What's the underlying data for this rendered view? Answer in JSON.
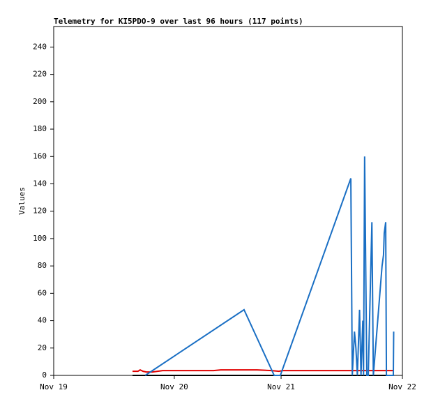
{
  "chart_data": {
    "type": "line",
    "title": "Telemetry for KI5PDO-9 over last 96 hours (117 points)",
    "y_label": "Values",
    "xlim": [
      0,
      96
    ],
    "xticks": [
      {
        "value": 0,
        "label": "Nov 19"
      },
      {
        "value": 33.2,
        "label": "Nov 20"
      },
      {
        "value": 62.6,
        "label": "Nov 21"
      },
      {
        "value": 96,
        "label": "Nov 22"
      }
    ],
    "ylim": [
      0,
      255
    ],
    "yticks": [
      0,
      20,
      40,
      60,
      80,
      100,
      120,
      140,
      160,
      180,
      200,
      220,
      240
    ],
    "series": [
      {
        "color": "#000000",
        "x": [
          21.7,
          93.7
        ],
        "values": [
          0,
          0
        ]
      },
      {
        "color": "#e00000",
        "x": [
          21.7,
          23.2,
          23.8,
          24.6,
          25.5,
          27.2,
          30.0,
          36.0,
          44.0,
          46.0,
          56.0,
          60.0,
          62.0,
          63.0,
          72.0,
          82.0,
          93.7
        ],
        "values": [
          3,
          3,
          4,
          3,
          2.5,
          2.5,
          3.5,
          3.5,
          3.5,
          4,
          4,
          3.5,
          3,
          3.5,
          3.5,
          3.5,
          3.5
        ]
      },
      {
        "color": "#1a6fc4",
        "x": [
          25.2,
          52.4,
          60.7,
          62.4,
          81.8,
          82.0,
          82.2,
          82.8,
          83.2,
          83.6,
          84.2,
          84.6,
          85.1,
          85.3,
          85.6,
          85.9,
          86.2,
          86.6,
          87.6,
          87.8,
          88.0,
          90.4,
          90.8,
          91.0,
          91.4,
          91.6,
          93.5,
          93.6
        ],
        "values": [
          0,
          48,
          0,
          0,
          144,
          73,
          0,
          32,
          20,
          0,
          48,
          0,
          40,
          0,
          160,
          80,
          0,
          0,
          112,
          56,
          0,
          80,
          88,
          104,
          112,
          0,
          0,
          32
        ]
      }
    ]
  }
}
